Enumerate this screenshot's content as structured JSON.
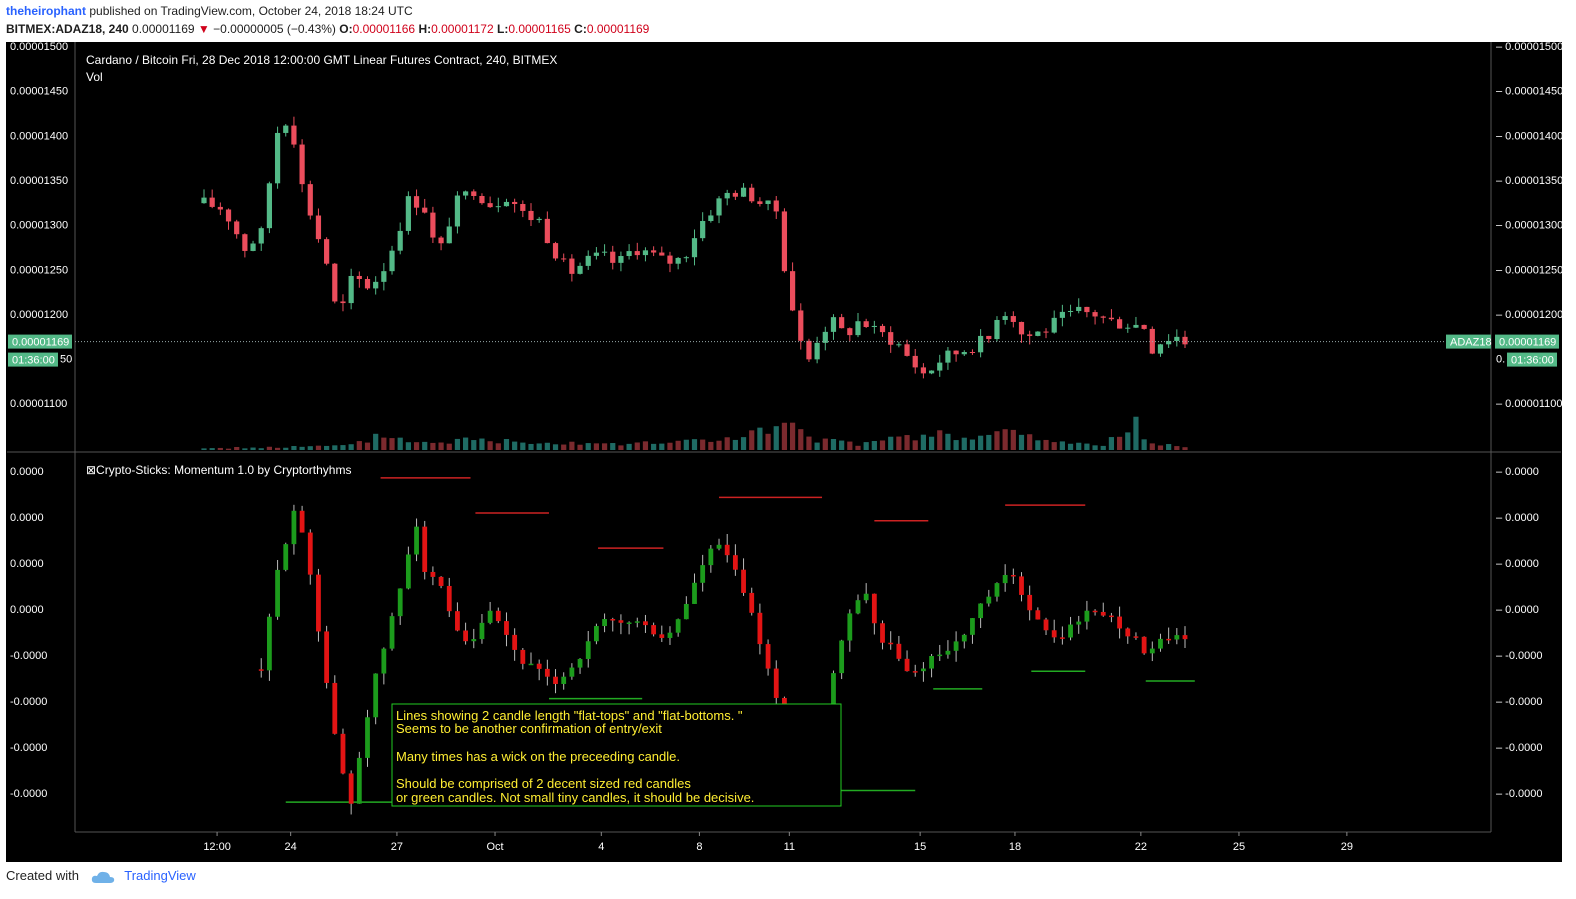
{
  "header": {
    "author": "theheirophant",
    "published_text": "published on TradingView.com, October 24, 2018 18:24 UTC",
    "symbol": "BITMEX:ADAZ18, 240",
    "last": "0.00001169",
    "change_arrow": "▼",
    "change": "−0.00000005 (−0.43%)",
    "o_label": "O:",
    "o_value": "0.00001166",
    "h_label": "H:",
    "h_value": "0.00001172",
    "l_label": "L:",
    "l_value": "0.00001165",
    "c_label": "C:",
    "c_value": "0.00001169"
  },
  "footer": {
    "created_with": "Created with",
    "brand": "TradingView"
  },
  "colors": {
    "background": "#000000",
    "up": "#53b987",
    "down": "#eb4d5c",
    "vol_up": "#1f6b64",
    "vol_down": "#7b2a2e",
    "ind_up": "#1c9c1c",
    "ind_down": "#e31414",
    "axis_text": "#ffffff",
    "label_bg": "#53b987",
    "annotation_border": "#22cc22",
    "annotation_text": "#ffee33"
  },
  "chart_data": [
    {
      "type": "candlestick",
      "title": "Cardano / Bitcoin Fri, 28 Dec 2018 12:00:00 GMT Linear Futures Contract, 240, BITMEX",
      "subtitle": "Vol",
      "ylim": [
        1.07e-05,
        1.5e-05
      ],
      "yticks": [
        "0.00001500",
        "0.00001450",
        "0.00001400",
        "0.00001350",
        "0.00001300",
        "0.00001250",
        "0.00001200",
        "0.00001150",
        "0.00001100"
      ],
      "last_price": "0.00001169",
      "countdown": "01:36:00",
      "symbol_label": "ADAZ18",
      "close_path": [
        [
          0,
          1324
        ],
        [
          1.2,
          1318
        ],
        [
          2.5,
          1274
        ],
        [
          3.5,
          1290
        ],
        [
          4.5,
          1405
        ],
        [
          5.3,
          1425
        ],
        [
          5.8,
          1355
        ],
        [
          6.7,
          1302
        ],
        [
          7.5,
          1258
        ],
        [
          8.2,
          1192
        ],
        [
          9.1,
          1242
        ],
        [
          10.2,
          1230
        ],
        [
          11.2,
          1258
        ],
        [
          12.6,
          1332
        ],
        [
          13.5,
          1318
        ],
        [
          14.3,
          1262
        ],
        [
          15.3,
          1322
        ],
        [
          16.5,
          1340
        ],
        [
          17.6,
          1322
        ],
        [
          18.6,
          1334
        ],
        [
          19.5,
          1312
        ],
        [
          20.5,
          1305
        ],
        [
          21.3,
          1276
        ],
        [
          22.3,
          1245
        ],
        [
          23.3,
          1258
        ],
        [
          24.3,
          1265
        ],
        [
          25.3,
          1255
        ],
        [
          26.3,
          1275
        ],
        [
          27.2,
          1268
        ],
        [
          28.2,
          1258
        ],
        [
          29.3,
          1262
        ],
        [
          30.3,
          1300
        ],
        [
          31.3,
          1323
        ],
        [
          32.2,
          1338
        ],
        [
          33.3,
          1335
        ],
        [
          34.4,
          1320
        ],
        [
          35.2,
          1315
        ],
        [
          35.6,
          1235
        ],
        [
          36.3,
          1185
        ],
        [
          36.8,
          1140
        ],
        [
          37.7,
          1182
        ],
        [
          38.5,
          1190
        ],
        [
          39.2,
          1176
        ],
        [
          40.2,
          1195
        ],
        [
          40.8,
          1182
        ],
        [
          41.8,
          1175
        ],
        [
          42.5,
          1165
        ],
        [
          43.2,
          1148
        ],
        [
          44.1,
          1132
        ],
        [
          45.1,
          1150
        ],
        [
          46.2,
          1158
        ],
        [
          47.0,
          1165
        ],
        [
          48.0,
          1172
        ],
        [
          48.6,
          1205
        ],
        [
          49.4,
          1200
        ],
        [
          50.0,
          1178
        ],
        [
          50.6,
          1176
        ],
        [
          51.5,
          1183
        ],
        [
          52.5,
          1195
        ],
        [
          53.5,
          1202
        ],
        [
          54.5,
          1200
        ],
        [
          55.3,
          1192
        ],
        [
          56.2,
          1190
        ],
        [
          57.0,
          1188
        ],
        [
          57.6,
          1186
        ],
        [
          58.0,
          1162
        ],
        [
          58.6,
          1171
        ],
        [
          59.4,
          1176
        ],
        [
          60.0,
          1169
        ]
      ],
      "volume_profile": [
        [
          0,
          0.06
        ],
        [
          5,
          0.1
        ],
        [
          9,
          0.15
        ],
        [
          11,
          0.55
        ],
        [
          13,
          0.25
        ],
        [
          16,
          0.35
        ],
        [
          20,
          0.3
        ],
        [
          24,
          0.25
        ],
        [
          27,
          0.22
        ],
        [
          31,
          0.35
        ],
        [
          33,
          0.5
        ],
        [
          35,
          0.7
        ],
        [
          36,
          0.95
        ],
        [
          37,
          0.35
        ],
        [
          40,
          0.22
        ],
        [
          44,
          0.45
        ],
        [
          45,
          0.6
        ],
        [
          47,
          0.3
        ],
        [
          49,
          0.7
        ],
        [
          52,
          0.25
        ],
        [
          55,
          0.2
        ],
        [
          57,
          0.85
        ],
        [
          58,
          0.2
        ],
        [
          60,
          0.12
        ]
      ],
      "x_tick_labels": [
        {
          "label": "12:00",
          "x": 0.8
        },
        {
          "label": "24",
          "x": 5.3
        },
        {
          "label": "27",
          "x": 11.8
        },
        {
          "label": "Oct",
          "x": 17.8
        },
        {
          "label": "4",
          "x": 24.3
        },
        {
          "label": "8",
          "x": 30.3
        },
        {
          "label": "11",
          "x": 35.8
        },
        {
          "label": "15",
          "x": 43.8
        },
        {
          "label": "18",
          "x": 49.6
        },
        {
          "label": "22",
          "x": 57.3
        },
        {
          "label": "25",
          "x": 63.3
        },
        {
          "label": "29",
          "x": 69.9
        }
      ]
    },
    {
      "type": "candlestick",
      "title": "⊠Crypto-Sticks: Momentum 1.0 by Cryptorthyhms",
      "ylim": [
        -9.2,
        8.2
      ],
      "yticks": [
        "0.0000",
        "0.0000",
        "0.0000",
        "0.0000",
        "-0.0000",
        "-0.0000",
        "-0.0000",
        "-0.0000"
      ],
      "close_path": [
        [
          3.5,
          -2
        ],
        [
          4.5,
          3
        ],
        [
          5.5,
          6.2
        ],
        [
          6.3,
          4
        ],
        [
          7.2,
          -1
        ],
        [
          8.2,
          -6.5
        ],
        [
          9.0,
          -8.8
        ],
        [
          9.6,
          -6
        ],
        [
          10.3,
          -3
        ],
        [
          11.3,
          0
        ],
        [
          12.3,
          3
        ],
        [
          12.9,
          6
        ],
        [
          13.5,
          3
        ],
        [
          14.6,
          2
        ],
        [
          15.3,
          0
        ],
        [
          16.3,
          -1
        ],
        [
          17.3,
          1
        ],
        [
          18.3,
          0
        ],
        [
          19.3,
          -1.5
        ],
        [
          20.3,
          -2
        ],
        [
          21.3,
          -2.8
        ],
        [
          22.4,
          -2
        ],
        [
          23.3,
          -1
        ],
        [
          24.3,
          0.5
        ],
        [
          25.3,
          0.3
        ],
        [
          26.3,
          0.5
        ],
        [
          27.3,
          0
        ],
        [
          28.3,
          -0.5
        ],
        [
          29.3,
          1
        ],
        [
          30.3,
          3
        ],
        [
          31.3,
          4.5
        ],
        [
          32.0,
          3.8
        ],
        [
          33.0,
          2
        ],
        [
          33.8,
          0
        ],
        [
          34.5,
          -2
        ],
        [
          35.5,
          -5
        ],
        [
          36.2,
          -7.5
        ],
        [
          36.8,
          -8.5
        ],
        [
          37.5,
          -6
        ],
        [
          38.5,
          -2
        ],
        [
          39.5,
          1
        ],
        [
          40.5,
          2
        ],
        [
          41.3,
          -0.5
        ],
        [
          42.3,
          -1
        ],
        [
          43.2,
          -2.5
        ],
        [
          44.3,
          -1.5
        ],
        [
          45.3,
          -1
        ],
        [
          46.3,
          -0.5
        ],
        [
          47.3,
          1
        ],
        [
          48.3,
          2
        ],
        [
          49.2,
          3
        ],
        [
          50.3,
          1.5
        ],
        [
          51.3,
          0
        ],
        [
          52.3,
          -0.5
        ],
        [
          53.3,
          0.5
        ],
        [
          54.3,
          1
        ],
        [
          55.3,
          0.8
        ],
        [
          56.3,
          0
        ],
        [
          57.0,
          -0.5
        ],
        [
          57.8,
          -1.3
        ],
        [
          58.6,
          -0.5
        ],
        [
          59.4,
          -0.4
        ],
        [
          60.0,
          -0.6
        ]
      ],
      "levels": [
        {
          "kind": "flat-top",
          "x0": 10.8,
          "x1": 16.3,
          "y": 7.8
        },
        {
          "kind": "flat-top",
          "x0": 16.6,
          "x1": 21.1,
          "y": 6.0
        },
        {
          "kind": "flat-top",
          "x0": 24.1,
          "x1": 28.1,
          "y": 4.2
        },
        {
          "kind": "flat-top",
          "x0": 31.5,
          "x1": 37.8,
          "y": 6.8
        },
        {
          "kind": "flat-top",
          "x0": 41.0,
          "x1": 44.3,
          "y": 5.6
        },
        {
          "kind": "flat-top",
          "x0": 49.0,
          "x1": 53.9,
          "y": 6.4
        },
        {
          "kind": "flat-bottom",
          "x0": 5.0,
          "x1": 12.3,
          "y": -8.8
        },
        {
          "kind": "flat-bottom",
          "x0": 21.1,
          "x1": 26.8,
          "y": -3.5
        },
        {
          "kind": "flat-bottom",
          "x0": 44.6,
          "x1": 47.6,
          "y": -3.0
        },
        {
          "kind": "flat-bottom",
          "x0": 50.6,
          "x1": 53.9,
          "y": -2.1
        },
        {
          "kind": "flat-bottom",
          "x0": 57.6,
          "x1": 60.6,
          "y": -2.6
        },
        {
          "kind": "flat-bottom",
          "x0": 35.0,
          "x1": 43.5,
          "y": -8.2
        }
      ],
      "annotation": [
        "Lines showing 2 candle length \"flat-tops\" and \"flat-bottoms. \"",
        "Seems to be another confirmation of entry/exit",
        "",
        "Many times has a wick on the preceeding candle.",
        "",
        "Should be comprised of 2 decent sized red candles",
        "or green candles.  Not small tiny candles, it should be decisive."
      ]
    }
  ]
}
